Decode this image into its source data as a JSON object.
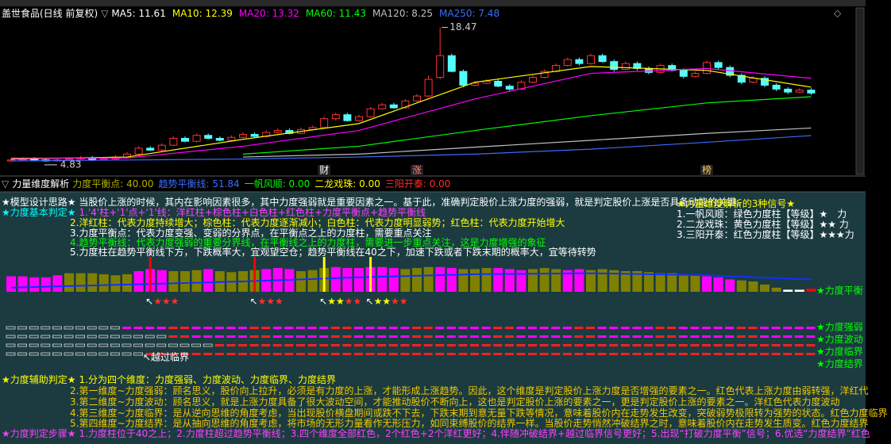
{
  "toolbar": {
    "title": "盖世食品(日线 前复权)",
    "indicators": [
      {
        "label": "MA5: 11.61",
        "color": "#ffffff"
      },
      {
        "label": "MA10: 12.39",
        "color": "#ffff00"
      },
      {
        "label": "MA20: 13.32",
        "color": "#ff00ff"
      },
      {
        "label": "MA60: 11.43",
        "color": "#00ff00"
      },
      {
        "label": "MA120: 8.25",
        "color": "#c0c0c0"
      },
      {
        "label": "MA250: 7.48",
        "color": "#3c6cff"
      }
    ]
  },
  "chart_data": [
    {
      "type": "candlestick",
      "up_color": "#ff3232",
      "down_color": "#54fcfc",
      "ylim": [
        4.5,
        19
      ],
      "open": [
        4.9,
        5.0,
        5.1,
        5.0,
        4.9,
        5.0,
        5.1,
        5.2,
        5.0,
        5.1,
        5.3,
        5.6,
        6.2,
        6.0,
        6.5,
        7.2,
        6.9,
        7.5,
        7.2,
        7.0,
        7.3,
        7.6,
        7.4,
        7.8,
        8.0,
        7.7,
        8.1,
        8.3,
        9.2,
        9.6,
        9.0,
        9.4,
        10.2,
        10.6,
        10.3,
        11.0,
        11.5,
        13.4,
        15.6,
        14.0,
        12.6,
        12.8,
        13.0,
        12.5,
        12.2,
        12.9,
        13.4,
        14.0,
        14.6,
        15.2,
        14.8,
        15.6,
        15.0,
        14.2,
        14.8,
        14.3,
        13.9,
        14.6,
        14.1,
        13.5,
        13.8,
        14.9,
        14.4,
        13.6,
        12.9,
        13.3,
        12.6,
        12.2,
        11.9,
        12.1
      ],
      "high": [
        5.2,
        5.3,
        5.3,
        5.2,
        5.2,
        5.3,
        5.4,
        5.4,
        5.3,
        5.5,
        5.8,
        6.4,
        6.4,
        6.7,
        7.4,
        7.4,
        7.7,
        7.7,
        7.4,
        7.5,
        7.8,
        7.8,
        8.0,
        8.2,
        8.2,
        8.3,
        8.5,
        9.4,
        9.8,
        9.8,
        9.6,
        10.4,
        10.8,
        10.8,
        11.2,
        11.7,
        13.6,
        18.47,
        15.8,
        14.2,
        13.0,
        13.2,
        13.2,
        12.7,
        13.1,
        13.6,
        14.2,
        14.8,
        15.4,
        15.4,
        15.8,
        15.8,
        15.2,
        15.0,
        15.0,
        14.5,
        14.8,
        14.8,
        14.3,
        14.0,
        15.1,
        15.1,
        14.6,
        13.8,
        13.5,
        13.5,
        12.8,
        12.4,
        12.3,
        12.3
      ],
      "low": [
        4.85,
        4.9,
        4.9,
        4.83,
        4.85,
        4.9,
        5.0,
        4.9,
        4.9,
        5.0,
        5.2,
        5.5,
        5.9,
        5.9,
        6.4,
        6.8,
        6.8,
        7.1,
        6.9,
        6.9,
        7.2,
        7.3,
        7.3,
        7.7,
        7.6,
        7.6,
        8.0,
        8.2,
        9.0,
        8.9,
        8.9,
        9.3,
        10.1,
        10.2,
        10.2,
        10.9,
        11.4,
        13.2,
        13.9,
        12.4,
        12.5,
        12.7,
        12.4,
        12.0,
        12.1,
        12.8,
        13.3,
        13.9,
        14.5,
        14.6,
        14.7,
        14.9,
        14.0,
        14.1,
        14.1,
        13.7,
        13.8,
        14.0,
        13.3,
        13.4,
        13.7,
        14.2,
        13.4,
        12.7,
        12.8,
        12.4,
        12.0,
        11.7,
        11.8,
        11.6
      ],
      "close": [
        5.0,
        5.1,
        5.0,
        4.9,
        5.0,
        5.1,
        5.2,
        5.0,
        5.1,
        5.3,
        5.6,
        6.2,
        6.0,
        6.5,
        7.2,
        6.9,
        7.5,
        7.2,
        7.0,
        7.3,
        7.6,
        7.4,
        7.8,
        8.0,
        7.7,
        8.1,
        8.3,
        9.2,
        9.6,
        9.0,
        9.4,
        10.2,
        10.6,
        10.3,
        11.0,
        11.5,
        13.2,
        15.6,
        14.0,
        12.6,
        12.8,
        13.0,
        12.5,
        12.2,
        12.9,
        13.4,
        14.0,
        14.6,
        15.2,
        14.8,
        15.6,
        15.0,
        14.2,
        14.8,
        14.3,
        13.9,
        14.6,
        14.1,
        13.5,
        13.8,
        14.9,
        14.4,
        13.6,
        12.9,
        13.3,
        12.6,
        12.2,
        11.9,
        12.1,
        11.8
      ],
      "max_label": 18.47,
      "min_label": 4.83,
      "ma_lines": [
        {
          "color": "#ffff00",
          "x": [
            0,
            10,
            20,
            30,
            40,
            50,
            60,
            69
          ],
          "values": [
            5.1,
            5.3,
            7.1,
            8.7,
            12.9,
            14.5,
            14.1,
            12.4
          ]
        },
        {
          "color": "#ff00ff",
          "x": [
            0,
            10,
            20,
            30,
            40,
            50,
            60,
            69
          ],
          "values": [
            5.2,
            5.2,
            6.4,
            8.0,
            11.2,
            13.8,
            14.3,
            13.3
          ]
        },
        {
          "color": "#00ff00",
          "x": [
            0,
            10,
            20,
            30,
            40,
            50,
            60,
            69
          ],
          "values": [
            null,
            null,
            5.6,
            6.4,
            8.0,
            9.5,
            10.8,
            11.43
          ]
        },
        {
          "color": "#c0c0c0",
          "x": [
            0,
            10,
            20,
            30,
            40,
            50,
            60,
            69
          ],
          "values": [
            null,
            null,
            5.3,
            5.6,
            6.3,
            7.0,
            7.7,
            8.25
          ]
        },
        {
          "color": "#3c6cff",
          "x": [
            0,
            10,
            20,
            30,
            40,
            50,
            60,
            69
          ],
          "values": [
            4.9,
            5.0,
            5.1,
            5.3,
            5.6,
            6.1,
            6.8,
            7.48
          ]
        }
      ],
      "events": [
        {
          "x": 27,
          "label": "财",
          "color": "#ffffff"
        },
        {
          "x": 35,
          "label": "涨",
          "color": "#ff8080"
        },
        {
          "x": 60,
          "label": "榜",
          "color": "#ffcc66"
        }
      ]
    },
    {
      "type": "bar",
      "title": "力量维度解析",
      "legend": [
        {
          "label": "力度平衡点: 40.00",
          "color": "#b0b000"
        },
        {
          "label": "趋势平衡线: 51.84",
          "color": "#3c6cff"
        },
        {
          "label": "一帆风顺: 0.00",
          "color": "#00ff00"
        },
        {
          "label": "二龙戏珠: 0.00",
          "color": "#ffff00"
        },
        {
          "label": "三阳开泰: 0.00",
          "color": "#ff3030"
        }
      ],
      "ylim": [
        40,
        100
      ],
      "values": [
        55,
        55,
        54,
        54,
        56,
        58,
        58,
        58,
        57,
        56,
        57,
        60,
        62,
        61,
        60,
        60,
        61,
        62,
        60,
        59,
        60,
        61,
        62,
        63,
        62,
        60,
        61,
        63,
        64,
        63,
        63,
        64,
        64,
        63,
        62,
        63,
        64,
        64,
        63,
        62,
        62,
        63,
        63,
        62,
        61,
        62,
        63,
        62,
        61,
        62,
        61,
        62,
        61,
        60,
        60,
        59,
        58,
        58,
        57,
        56,
        55,
        54,
        52,
        51,
        50,
        47,
        44,
        42,
        42,
        43
      ],
      "bar_colors": [
        "#ff00ff",
        "#ff00ff",
        "#ff00ff",
        "#ff00ff",
        "#ff00ff",
        "#808000",
        "#808000",
        "#808000",
        "#808000",
        "#808000",
        "#808000",
        "#ff00ff",
        "#ff00ff",
        "#ff00ff",
        "#808000",
        "#808000",
        "#808000",
        "#ff00ff",
        "#808000",
        "#808000",
        "#808000",
        "#808000",
        "#ff00ff",
        "#ff00ff",
        "#ff00ff",
        "#808000",
        "#808000",
        "#808000",
        "#ff00ff",
        "#ff00ff",
        "#ff00ff",
        "#ff00ff",
        "#ff00ff",
        "#ff00ff",
        "#808000",
        "#808000",
        "#808000",
        "#ff00ff",
        "#ff00ff",
        "#808000",
        "#808000",
        "#808000",
        "#ff00ff",
        "#ff00ff",
        "#ff00ff",
        "#808000",
        "#808000",
        "#808000",
        "#ff00ff",
        "#ff00ff",
        "#808000",
        "#808000",
        "#808000",
        "#808000",
        "#808000",
        "#808000",
        "#808000",
        "#808000",
        "#808000",
        "#808000",
        "#ff00ff",
        "#ff00ff",
        "#ff00ff",
        "#808000",
        "#808000",
        "#808000",
        "#808000",
        "#ffffff",
        "#ffffff",
        "#ff0000"
      ],
      "trend_line": {
        "color": "#1030ff",
        "x": [
          0,
          10,
          20,
          30,
          40,
          50,
          60,
          69
        ],
        "values": [
          44,
          47,
          50,
          54,
          57,
          58,
          56,
          51.84
        ]
      },
      "signals": [
        {
          "x": 12,
          "line_color": "#ff0000",
          "label": [
            {
              "text": "↖",
              "color": "#ffffff"
            },
            {
              "text": "★★★",
              "color": "#ff3030"
            }
          ]
        },
        {
          "x": 21,
          "line_color": "#ff0000",
          "label": [
            {
              "text": "↖",
              "color": "#ffffff"
            },
            {
              "text": "★★★",
              "color": "#ff3030"
            }
          ]
        },
        {
          "x": 27,
          "line_color": "#ffff00",
          "label": [
            {
              "text": "↖",
              "color": "#ffffff"
            },
            {
              "text": "★★",
              "color": "#ffff00"
            },
            {
              "text": "★★",
              "color": "#ff3030"
            }
          ]
        },
        {
          "x": 31,
          "line_color": "#ffff00",
          "label": [
            {
              "text": "↖",
              "color": "#ffffff"
            },
            {
              "text": "★★",
              "color": "#ffff00"
            },
            {
              "text": "★★",
              "color": "#ff3030"
            }
          ]
        }
      ],
      "balance_label": "★力度平衡",
      "state_labels": [
        "★力度强弱",
        "★力度波动",
        "★力度临界",
        "★力度结界"
      ],
      "cross_note": "↖越过临界"
    }
  ],
  "notes": {
    "lines": [
      [
        {
          "text": "★模型设计思路★ 当股价上涨的时候，其内在影响因素很多，其中力度强弱就是重要因素之一。基于此，准确判定股价上涨力度的强弱，就是判定股价上涨是否具备动能的关键。",
          "color": "#ffffff"
        }
      ],
      [
        {
          "text": "★力度基本判定★",
          "color": "#00ffff"
        },
        {
          "text": "1.'4'柱+'1'点+'1'线：洋红柱+棕色柱+白色柱+红色柱+力度平衡点+趋势平衡线",
          "color": "#ff40ff"
        }
      ],
      [
        {
          "text": "2.洋红柱：代表力度持续增大；棕色柱：代表力度逐渐减小；白色柱：代表力度明显弱势；红色柱：代表力度开始增大",
          "color": "#ffff00"
        }
      ],
      [
        {
          "text": "3.力度平衡点：代表力度变强、变弱的分界点，在平衡点之上的力度柱，需要重点关注",
          "color": "#ffffff"
        }
      ],
      [
        {
          "text": "4.趋势平衡线：代表力度强弱的重要分界线，在平衡线之上的力度柱，需要进一步重点关注，这是力度增强的象征",
          "color": "#00ff00"
        }
      ],
      [
        {
          "text": "5.力度柱在趋势平衡线下方，下跌概率大，宜观望空仓；趋势平衡线在40之下，加速下跌或者下跌末期的概率大，宜等待转势",
          "color": "#ffffff"
        }
      ]
    ],
    "signal_box": {
      "title": "★力量维度解析的3种信号★",
      "items": [
        "1.一帆风顺：绿色力度柱【等级】★　力",
        "2.二龙戏珠：黄色力度柱【等级】★★ 力",
        "3.三阳开泰：红色力度柱【等级】★★★力"
      ]
    },
    "aux_lines": [
      [
        {
          "text": "★力度辅助判定★",
          "color": "#ffff00"
        },
        {
          "text": "1.分为四个维度：力度强弱、力度波动、力度临界、力度结界",
          "color": "#ffff00"
        }
      ],
      [
        {
          "text": "2.第一维度~力度强弱：顾名思义，股价向上拉升，必须是有力度的上涨，才能形成上涨趋势。因此，这个维度是判定股价上涨力度是否增强的要素之一。红色代表上涨力度由弱转强，洋红代",
          "color": "#f0c800"
        }
      ],
      [
        {
          "text": "3.第二维度~力度波动：顾名思义，就是上涨力度具备了很大波动空间，才能推动股价不断向上，这也是判定股价上涨的要素之一，更是判定股价上涨的要素之一。洋红色代表力度波动",
          "color": "#f0c800"
        }
      ],
      [
        {
          "text": "4.第三维度~力度临界：是从逆向思维的角度考虑，当出现股价横盘期间或跌不下去，下跌末期到意无量下跌等情况，意味着股价内在走势发生改变，突破弱势极限转为强势的状态。红色力度临界",
          "color": "#f0c800"
        }
      ],
      [
        {
          "text": "5.第四维度~力度结界：是从抽向思维的角度考虑，将市场的无形力量看作无形压力，如同束缚股价的结界一样。当股价走势悄然冲破结界之时，意味着股价内在走势发生质变。红色力度结界",
          "color": "#f0c800"
        }
      ],
      [
        {
          "text": "★力度判定步骤★",
          "color": "#ff40ff"
        },
        {
          "text": "1.力度柱位于40之上；2.力度柱超过趋势平衡线；3.四个维度全部红色，2个红色+2个洋红更好；4.伴随冲破结界+越过临界信号更好；5.出现“打破力度平衡”信号；6.优选“力度结界”红色",
          "color": "#ff40ff"
        }
      ]
    ]
  }
}
